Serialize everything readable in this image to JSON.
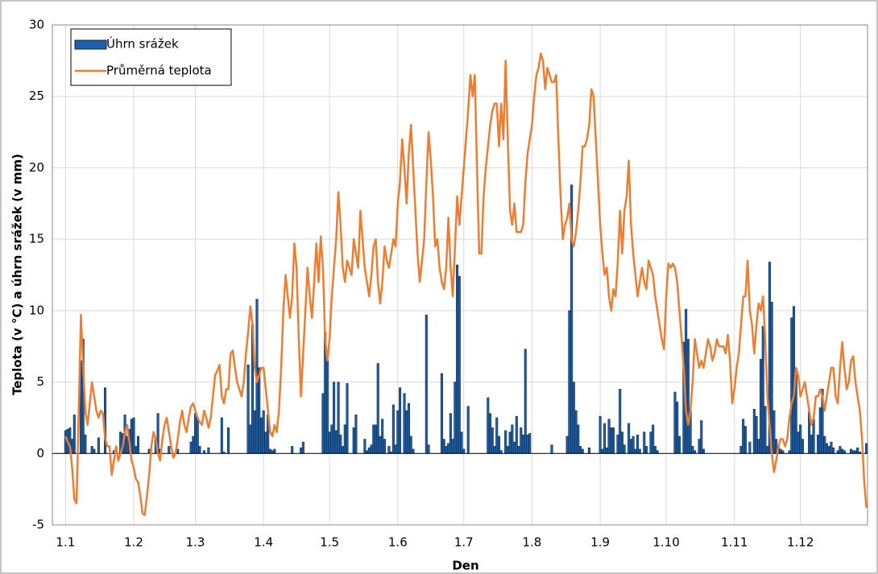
{
  "chart_data": {
    "type": "combo",
    "x_label": "Den",
    "y_label": "Teplota (v °C) a úhrn srážek (v mm)",
    "categories": [
      "1.1",
      null,
      null,
      null,
      null,
      null,
      null,
      null,
      null,
      null,
      null,
      null,
      null,
      null,
      null,
      null,
      null,
      null,
      null,
      null,
      null,
      null,
      null,
      null,
      null,
      null,
      null,
      null,
      null,
      null,
      null,
      "1.2",
      null,
      null,
      null,
      null,
      null,
      null,
      null,
      null,
      null,
      null,
      null,
      null,
      null,
      null,
      null,
      null,
      null,
      null,
      null,
      null,
      null,
      null,
      null,
      null,
      null,
      null,
      null,
      "1.3",
      null,
      null,
      null,
      null,
      null,
      null,
      null,
      null,
      null,
      null,
      null,
      null,
      null,
      null,
      null,
      null,
      null,
      null,
      null,
      null,
      null,
      null,
      null,
      null,
      null,
      null,
      null,
      null,
      null,
      null,
      "1.4",
      null,
      null,
      null,
      null,
      null,
      null,
      null,
      null,
      null,
      null,
      null,
      null,
      null,
      null,
      null,
      null,
      null,
      null,
      null,
      null,
      null,
      null,
      null,
      null,
      null,
      null,
      null,
      null,
      null,
      "1.5",
      null,
      null,
      null,
      null,
      null,
      null,
      null,
      null,
      null,
      null,
      null,
      null,
      null,
      null,
      null,
      null,
      null,
      null,
      null,
      null,
      null,
      null,
      null,
      null,
      null,
      null,
      null,
      null,
      null,
      null,
      "1.6",
      null,
      null,
      null,
      null,
      null,
      null,
      null,
      null,
      null,
      null,
      null,
      null,
      null,
      null,
      null,
      null,
      null,
      null,
      null,
      null,
      null,
      null,
      null,
      null,
      null,
      null,
      null,
      null,
      null,
      "1.7",
      null,
      null,
      null,
      null,
      null,
      null,
      null,
      null,
      null,
      null,
      null,
      null,
      null,
      null,
      null,
      null,
      null,
      null,
      null,
      null,
      null,
      null,
      null,
      null,
      null,
      null,
      null,
      null,
      null,
      null,
      "1.8",
      null,
      null,
      null,
      null,
      null,
      null,
      null,
      null,
      null,
      null,
      null,
      null,
      null,
      null,
      null,
      null,
      null,
      null,
      null,
      null,
      null,
      null,
      null,
      null,
      null,
      null,
      null,
      null,
      null,
      null,
      "1.9",
      null,
      null,
      null,
      null,
      null,
      null,
      null,
      null,
      null,
      null,
      null,
      null,
      null,
      null,
      null,
      null,
      null,
      null,
      null,
      null,
      null,
      null,
      null,
      null,
      null,
      null,
      null,
      null,
      null,
      "1.10",
      null,
      null,
      null,
      null,
      null,
      null,
      null,
      null,
      null,
      null,
      null,
      null,
      null,
      null,
      null,
      null,
      null,
      null,
      null,
      null,
      null,
      null,
      null,
      null,
      null,
      null,
      null,
      null,
      null,
      null,
      "1.11",
      null,
      null,
      null,
      null,
      null,
      null,
      null,
      null,
      null,
      null,
      null,
      null,
      null,
      null,
      null,
      null,
      null,
      null,
      null,
      null,
      null,
      null,
      null,
      null,
      null,
      null,
      null,
      null,
      null,
      "1.12",
      null,
      null,
      null,
      null,
      null,
      null,
      null,
      null,
      null,
      null,
      null,
      null,
      null,
      null,
      null,
      null,
      null,
      null,
      null,
      null,
      null,
      null,
      null,
      null,
      null,
      null,
      null,
      null,
      null,
      null
    ],
    "series": [
      {
        "name": "Úhrn srážek",
        "type": "bar",
        "color": "#1f5fa8",
        "values": [
          1.6,
          1.7,
          1.8,
          1,
          2.7,
          0,
          0,
          6.5,
          8,
          1.3,
          0,
          0,
          0.5,
          0.3,
          0,
          1.1,
          0,
          0,
          4.6,
          0,
          0,
          0,
          0.2,
          0.4,
          0,
          1.5,
          1.4,
          2.7,
          1.2,
          1.7,
          2.4,
          2.5,
          0.5,
          1.2,
          0,
          0,
          0,
          0,
          0.3,
          0,
          0,
          1,
          2.8,
          0.3,
          0,
          0,
          0,
          0.5,
          0,
          0,
          0,
          0.3,
          0,
          0,
          0,
          0,
          0,
          0.8,
          1.2,
          2.8,
          2.5,
          0.5,
          0,
          0.2,
          0,
          0.4,
          0,
          0,
          0,
          0,
          0,
          2.5,
          0.1,
          0,
          1.8,
          0,
          0,
          0,
          0,
          0,
          0,
          0,
          0,
          6.2,
          2,
          9,
          3,
          10.8,
          6,
          2.5,
          3,
          1.5,
          2.7,
          0.3,
          0.2,
          0.3,
          0,
          0,
          0,
          0,
          0,
          0,
          0,
          0.5,
          0,
          0,
          0,
          0.4,
          0.8,
          0,
          0,
          0,
          0,
          0,
          0,
          0,
          0,
          4.2,
          8.5,
          6.5,
          1.5,
          2,
          5,
          1.6,
          5,
          1.3,
          0.5,
          2,
          4.9,
          0,
          0,
          1.8,
          2.7,
          0,
          0,
          0,
          1,
          0.2,
          0.4,
          0.6,
          2,
          2,
          6.3,
          1.2,
          2.4,
          1,
          0,
          0.5,
          0.1,
          3.4,
          0.6,
          3,
          4.6,
          0,
          4.2,
          3,
          3.5,
          1.2,
          0.3,
          0,
          0,
          0,
          0,
          0,
          9.7,
          0.6,
          0,
          0,
          0,
          0,
          0,
          5.6,
          1,
          0.5,
          0.7,
          2.8,
          1,
          5,
          13.2,
          12.4,
          1.5,
          0.3,
          0,
          3.3,
          0,
          0,
          0,
          0,
          0,
          0,
          0,
          0,
          3.9,
          2.8,
          1.8,
          0.5,
          2.5,
          1.2,
          0.2,
          0,
          1.6,
          0.5,
          1.5,
          2,
          0.8,
          2.6,
          0.5,
          1.8,
          1.3,
          7.3,
          1.3,
          1.4,
          0,
          0,
          0,
          0,
          0,
          0,
          0,
          0,
          0,
          0.6,
          0,
          0,
          0,
          0,
          0,
          0,
          1.2,
          10,
          18.8,
          5,
          3,
          2,
          0.5,
          0.3,
          0,
          0,
          0.4,
          0,
          0,
          0,
          0,
          2.6,
          0.3,
          2.1,
          0.4,
          2.4,
          1.8,
          1.8,
          0,
          1.3,
          4.5,
          1.5,
          0.6,
          0,
          2.1,
          1,
          1.2,
          0.3,
          1.3,
          0.3,
          0,
          1.5,
          0.5,
          0,
          1.5,
          2,
          0.5,
          0.2,
          0,
          0,
          0,
          0,
          0,
          0,
          0,
          4.3,
          3.6,
          1.2,
          0,
          7.8,
          10.1,
          8,
          3,
          0.5,
          0.2,
          0,
          1,
          2.3,
          0.3,
          0,
          0,
          0,
          0,
          0,
          0,
          0,
          0,
          0,
          0,
          0,
          0,
          0,
          0,
          0,
          0,
          0.5,
          2.4,
          1.9,
          0,
          0.8,
          0,
          3.1,
          2.6,
          1,
          6.6,
          8.9,
          3.3,
          0.5,
          13.4,
          10.6,
          3,
          1,
          0.5,
          0.3,
          0.2,
          0,
          0,
          0.2,
          9.5,
          10.3,
          5.5,
          1.5,
          2,
          1,
          0,
          0,
          2.9,
          1.3,
          2.4,
          0,
          1.3,
          3.2,
          4.5,
          1.2,
          0.7,
          0.5,
          0.8,
          0.4,
          0,
          0.2,
          0.5,
          0.3,
          0.2,
          0,
          0,
          0.3,
          0.2,
          0.2,
          0.4,
          0.1,
          0,
          0,
          0.7
        ]
      },
      {
        "name": "Průměrná teplota",
        "type": "line",
        "color": "#ed7d31",
        "values": [
          1.2,
          0.8,
          0.5,
          -1,
          -3.2,
          -3.5,
          3,
          9.7,
          6,
          3,
          2,
          3.5,
          5,
          4,
          3,
          2.5,
          3,
          2.8,
          1,
          0.5,
          0.5,
          -1.5,
          -0.5,
          0.5,
          -0.5,
          0,
          0.5,
          1.5,
          2,
          0.8,
          -0.5,
          -1,
          -1.8,
          -2,
          -3,
          -4.2,
          -4.3,
          -3,
          -1.5,
          0.5,
          1.5,
          1,
          0,
          -0.5,
          1,
          2,
          2.5,
          1.5,
          0.5,
          -0.3,
          0,
          1,
          2.2,
          3,
          2,
          1.5,
          2.5,
          3.3,
          3.5,
          3,
          2.5,
          2.2,
          2,
          3,
          2.5,
          1.8,
          2.5,
          4,
          5.5,
          5.8,
          6.2,
          4,
          3.5,
          4.5,
          4.5,
          7,
          7.2,
          6,
          5,
          4.5,
          4,
          5,
          7,
          8.5,
          10.3,
          9,
          6,
          5,
          5.5,
          6,
          6,
          4.5,
          3,
          1.5,
          1.2,
          2,
          1.5,
          3,
          6,
          10,
          12.5,
          11,
          9.5,
          11,
          14.7,
          13,
          8,
          4,
          7,
          10,
          13,
          11,
          9.5,
          12,
          14.7,
          12,
          15.2,
          13,
          8,
          6.5,
          8,
          11,
          13,
          15,
          18.3,
          16,
          13,
          12,
          13.5,
          13,
          12.5,
          15,
          14,
          13,
          17,
          15,
          13,
          12,
          11,
          12.5,
          14.5,
          15,
          12,
          10.5,
          12,
          14.5,
          13.5,
          13,
          14,
          15,
          14.5,
          17.5,
          19,
          22,
          20,
          17.5,
          21,
          23,
          20,
          17,
          14,
          12,
          13.5,
          15,
          19,
          22.5,
          20.5,
          18,
          14.5,
          15,
          13,
          12,
          11.5,
          13,
          16.5,
          13,
          11,
          14.5,
          18,
          16,
          18,
          20,
          22,
          24,
          26.5,
          25,
          26.5,
          20,
          14,
          14,
          18,
          20,
          21.5,
          23,
          24,
          24.5,
          24.5,
          21.5,
          24.5,
          22,
          27.5,
          22,
          17,
          16,
          17.5,
          15.5,
          15.5,
          15.5,
          16,
          19,
          21,
          22,
          23,
          25,
          26.5,
          27,
          28,
          27.5,
          25.5,
          27,
          26.5,
          26,
          26,
          26.5,
          22,
          18,
          15,
          16,
          16.5,
          17.5,
          15,
          14.5,
          15.5,
          17,
          19,
          21.5,
          21.5,
          22,
          23,
          25.5,
          25,
          22,
          19,
          16,
          14,
          12.5,
          13,
          11,
          10,
          11.5,
          11,
          13.5,
          17,
          14,
          17,
          18,
          20.5,
          16,
          14,
          12.5,
          11,
          12,
          13,
          12,
          11.5,
          13.5,
          13,
          12.5,
          11,
          10,
          9,
          8,
          7.3,
          11,
          13.3,
          13,
          13.3,
          13,
          12,
          10,
          8,
          6,
          3,
          2,
          3,
          5,
          8,
          7,
          6,
          6.5,
          6,
          7,
          8,
          7.5,
          6.5,
          7,
          8,
          7.5,
          7.5,
          7.5,
          7,
          8.3,
          6.5,
          3.5,
          4.5,
          6,
          7,
          9,
          11,
          11,
          13.5,
          10,
          9,
          7,
          9,
          10.5,
          10,
          11,
          8,
          4,
          2,
          0,
          -1.3,
          -0.5,
          0.5,
          1,
          1,
          0.5,
          1,
          2.5,
          3.5,
          4,
          6,
          5.5,
          4,
          4.5,
          5,
          4,
          3,
          2,
          2.5,
          4,
          4,
          4.5,
          4,
          3,
          4,
          5,
          6,
          6,
          4,
          3.5,
          6,
          7.8,
          6,
          4.5,
          5,
          6.5,
          6.8,
          5,
          4,
          3,
          1,
          -2,
          -3.8
        ]
      }
    ],
    "ylim": [
      -5,
      30
    ],
    "yticks": [
      -5,
      0,
      5,
      10,
      15,
      20,
      25,
      30
    ],
    "grid": true,
    "legend": "upper-left"
  }
}
